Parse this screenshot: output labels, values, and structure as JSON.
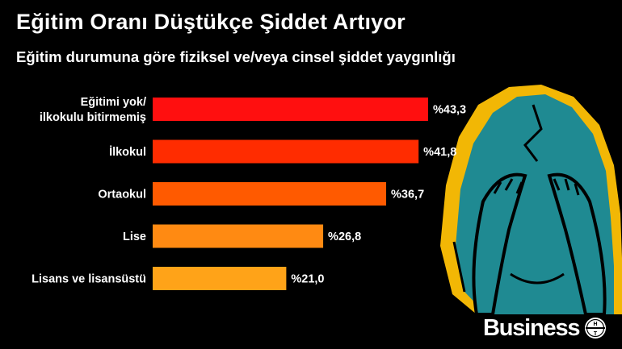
{
  "header": {
    "title": "Eğitim Oranı Düştükçe Şiddet Artıyor",
    "subtitle": "Eğitim durumuna göre fiziksel ve/veya cinsel şiddet yaygınlığı"
  },
  "brand": {
    "name": "Business",
    "logo_letters": "HT"
  },
  "chart_data": {
    "type": "bar",
    "orientation": "horizontal",
    "categories": [
      [
        "Eğitimi yok/",
        "ilkokulu bitirmemiş"
      ],
      [
        "İlkokul"
      ],
      [
        "Ortaokul"
      ],
      [
        "Lise"
      ],
      [
        "Lisans ve lisansüstü"
      ]
    ],
    "values": [
      43.3,
      41.8,
      36.7,
      26.8,
      21.0
    ],
    "value_labels": [
      "%43,3",
      "%41,8",
      "%36,7",
      "%26,8",
      "%21,0"
    ],
    "colors": [
      "#ff0f0f",
      "#ff2c00",
      "#ff5a00",
      "#ff8a12",
      "#ffa318"
    ],
    "xlim": [
      0,
      43.3
    ],
    "grid": false,
    "legend": "none"
  }
}
